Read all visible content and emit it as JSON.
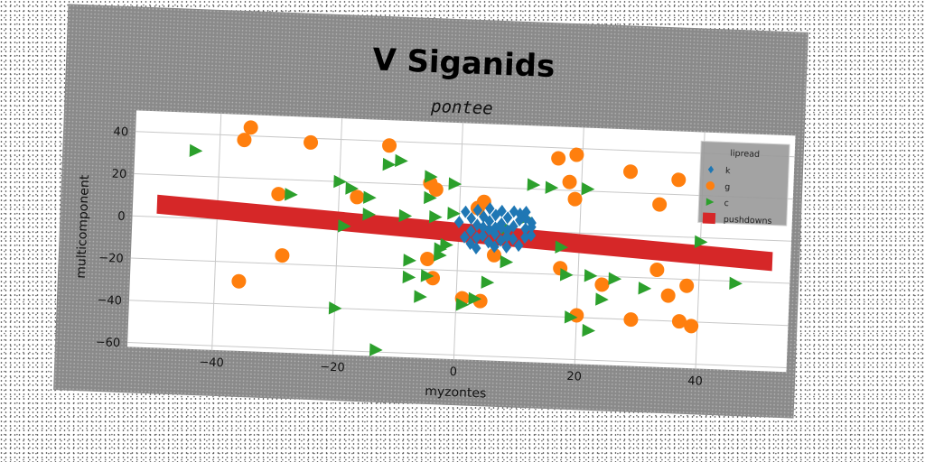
{
  "chart_data": {
    "type": "scatter",
    "title": "V Siganids",
    "subtitle": "pontee",
    "xlabel": "myzontes",
    "ylabel": "multicomponent",
    "xlim": [
      -54,
      55
    ],
    "ylim": [
      -62,
      50
    ],
    "xticks": [
      -40,
      -20,
      0,
      20,
      40
    ],
    "yticks": [
      40,
      20,
      0,
      -20,
      -40,
      -60
    ],
    "grid": true,
    "legend": {
      "title": "lipread",
      "position": "top-right",
      "entries": [
        "k",
        "g",
        "c",
        "pushdowns"
      ]
    },
    "series": [
      {
        "name": "k",
        "marker": "diamond",
        "color": "#1f77b4",
        "points": [
          [
            0,
            3
          ],
          [
            1,
            8
          ],
          [
            1,
            -4
          ],
          [
            2,
            5
          ],
          [
            2,
            -7
          ],
          [
            3,
            2
          ],
          [
            3,
            9
          ],
          [
            3,
            -9
          ],
          [
            4,
            6
          ],
          [
            4,
            -3
          ],
          [
            5,
            4
          ],
          [
            5,
            -6
          ],
          [
            5,
            10
          ],
          [
            6,
            1
          ],
          [
            6,
            -2
          ],
          [
            6,
            7
          ],
          [
            7,
            3
          ],
          [
            7,
            -5
          ],
          [
            7,
            9
          ],
          [
            8,
            0
          ],
          [
            8,
            6
          ],
          [
            8,
            -8
          ],
          [
            9,
            2
          ],
          [
            9,
            -4
          ],
          [
            10,
            5
          ],
          [
            10,
            8
          ],
          [
            11,
            1
          ],
          [
            11,
            -3
          ],
          [
            11,
            6
          ],
          [
            12,
            4
          ],
          [
            12,
            -2
          ],
          [
            10,
            -7
          ],
          [
            9,
            9
          ],
          [
            2,
            -1
          ],
          [
            3,
            -4
          ],
          [
            4,
            1
          ],
          [
            6,
            -8
          ],
          [
            8,
            -3
          ],
          [
            12,
            2
          ],
          [
            5,
            0
          ],
          [
            7,
            1
          ],
          [
            11,
            9
          ]
        ]
      },
      {
        "name": "g",
        "color": "#ff7f0e",
        "marker": "circle",
        "points": [
          [
            -36,
            38
          ],
          [
            -35,
            44
          ],
          [
            -25,
            38
          ],
          [
            -12,
            38
          ],
          [
            -30,
            13
          ],
          [
            -17,
            13
          ],
          [
            -5,
            21
          ],
          [
            -4,
            18
          ],
          [
            3,
            10
          ],
          [
            4,
            13
          ],
          [
            16,
            35
          ],
          [
            19,
            37
          ],
          [
            18,
            24
          ],
          [
            19,
            16
          ],
          [
            28,
            30
          ],
          [
            33,
            15
          ],
          [
            36,
            27
          ],
          [
            -29,
            -16
          ],
          [
            -36,
            -29
          ],
          [
            -5,
            -15
          ],
          [
            -4,
            -24
          ],
          [
            1,
            -33
          ],
          [
            4,
            -34
          ],
          [
            6,
            -12
          ],
          [
            17,
            -17
          ],
          [
            20,
            -39
          ],
          [
            24,
            -24
          ],
          [
            29,
            -40
          ],
          [
            33,
            -16
          ],
          [
            35,
            -28
          ],
          [
            37,
            -40
          ],
          [
            39,
            -42
          ],
          [
            38,
            -23
          ]
        ]
      },
      {
        "name": "c",
        "color": "#2ca02c",
        "marker": "triangle-right",
        "points": [
          [
            -44,
            32
          ],
          [
            -28,
            13
          ],
          [
            -20,
            20
          ],
          [
            -18,
            17
          ],
          [
            -15,
            13
          ],
          [
            -12,
            29
          ],
          [
            -10,
            31
          ],
          [
            -5,
            24
          ],
          [
            -5,
            14
          ],
          [
            -1,
            21
          ],
          [
            -1,
            7
          ],
          [
            -19,
            -1
          ],
          [
            -15,
            5
          ],
          [
            -9,
            5
          ],
          [
            -4,
            5
          ],
          [
            -8,
            -16
          ],
          [
            -8,
            -24
          ],
          [
            -5,
            -23
          ],
          [
            -6,
            -33
          ],
          [
            -3,
            -13
          ],
          [
            -3,
            -10
          ],
          [
            -2,
            -8
          ],
          [
            1,
            -36
          ],
          [
            3,
            -33
          ],
          [
            5,
            -25
          ],
          [
            8,
            -15
          ],
          [
            8,
            1
          ],
          [
            11,
            6
          ],
          [
            12,
            22
          ],
          [
            15,
            21
          ],
          [
            17,
            -7
          ],
          [
            18,
            -20
          ],
          [
            21,
            21
          ],
          [
            22,
            -20
          ],
          [
            19,
            -40
          ],
          [
            22,
            -46
          ],
          [
            24,
            -31
          ],
          [
            26,
            -21
          ],
          [
            31,
            -25
          ],
          [
            40,
            -2
          ],
          [
            46,
            -21
          ],
          [
            -20,
            -40
          ],
          [
            -13,
            -59
          ]
        ]
      },
      {
        "name": "pushdowns",
        "color": "#d62728",
        "marker": "band",
        "band": {
          "x": [
            -50,
            52
          ],
          "y_center": [
            6,
            -10
          ],
          "half_height": 4.5
        }
      }
    ]
  }
}
